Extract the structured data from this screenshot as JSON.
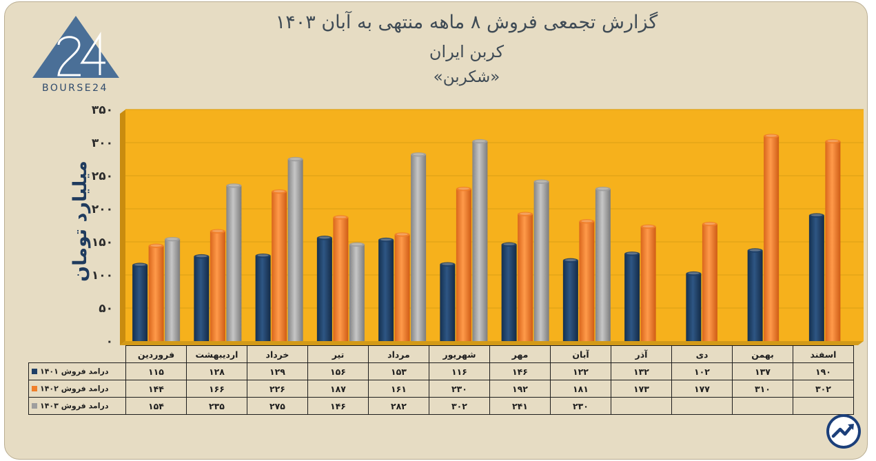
{
  "header": {
    "title_line1": "گزارش تجمعی فروش ۸ ماهه منتهی به آبان ۱۴۰۳",
    "title_line2": "کربن ایران",
    "title_line3": "«شکربن»"
  },
  "logo": {
    "text": "BOURSE24",
    "mark": "24"
  },
  "chart_data": {
    "type": "bar",
    "ylabel": "میلیارد تومان",
    "ylim": [
      0,
      350
    ],
    "yticks": [
      "۰",
      "۵۰",
      "۱۰۰",
      "۱۵۰",
      "۲۰۰",
      "۲۵۰",
      "۳۰۰",
      "۳۵۰"
    ],
    "categories": [
      "فروردین",
      "اردیبهشت",
      "خرداد",
      "تیر",
      "مرداد",
      "شهریور",
      "مهر",
      "آبان",
      "آذر",
      "دی",
      "بهمن",
      "اسفند"
    ],
    "series": [
      {
        "name": "درامد فروش ۱۴۰۱",
        "color": "#1f3f66",
        "values": [
          115,
          128,
          129,
          156,
          153,
          116,
          146,
          122,
          132,
          102,
          137,
          190
        ],
        "labels": [
          "۱۱۵",
          "۱۲۸",
          "۱۲۹",
          "۱۵۶",
          "۱۵۳",
          "۱۱۶",
          "۱۴۶",
          "۱۲۲",
          "۱۳۲",
          "۱۰۲",
          "۱۳۷",
          "۱۹۰"
        ]
      },
      {
        "name": "درامد فروش ۱۴۰۲",
        "color": "#f07f2a",
        "values": [
          144,
          166,
          226,
          187,
          161,
          230,
          192,
          181,
          173,
          177,
          310,
          302
        ],
        "labels": [
          "۱۴۴",
          "۱۶۶",
          "۲۲۶",
          "۱۸۷",
          "۱۶۱",
          "۲۳۰",
          "۱۹۲",
          "۱۸۱",
          "۱۷۳",
          "۱۷۷",
          "۳۱۰",
          "۳۰۲"
        ]
      },
      {
        "name": "درامد فروش ۱۴۰۳",
        "color": "#9e9e9e",
        "values": [
          154,
          235,
          275,
          146,
          282,
          302,
          241,
          230,
          null,
          null,
          null,
          null
        ],
        "labels": [
          "۱۵۴",
          "۲۳۵",
          "۲۷۵",
          "۱۴۶",
          "۲۸۲",
          "۳۰۲",
          "۲۴۱",
          "۲۳۰",
          "",
          "",
          "",
          ""
        ]
      }
    ],
    "grid": true,
    "legend": "table below chart",
    "background_color": "#f6b11c"
  }
}
